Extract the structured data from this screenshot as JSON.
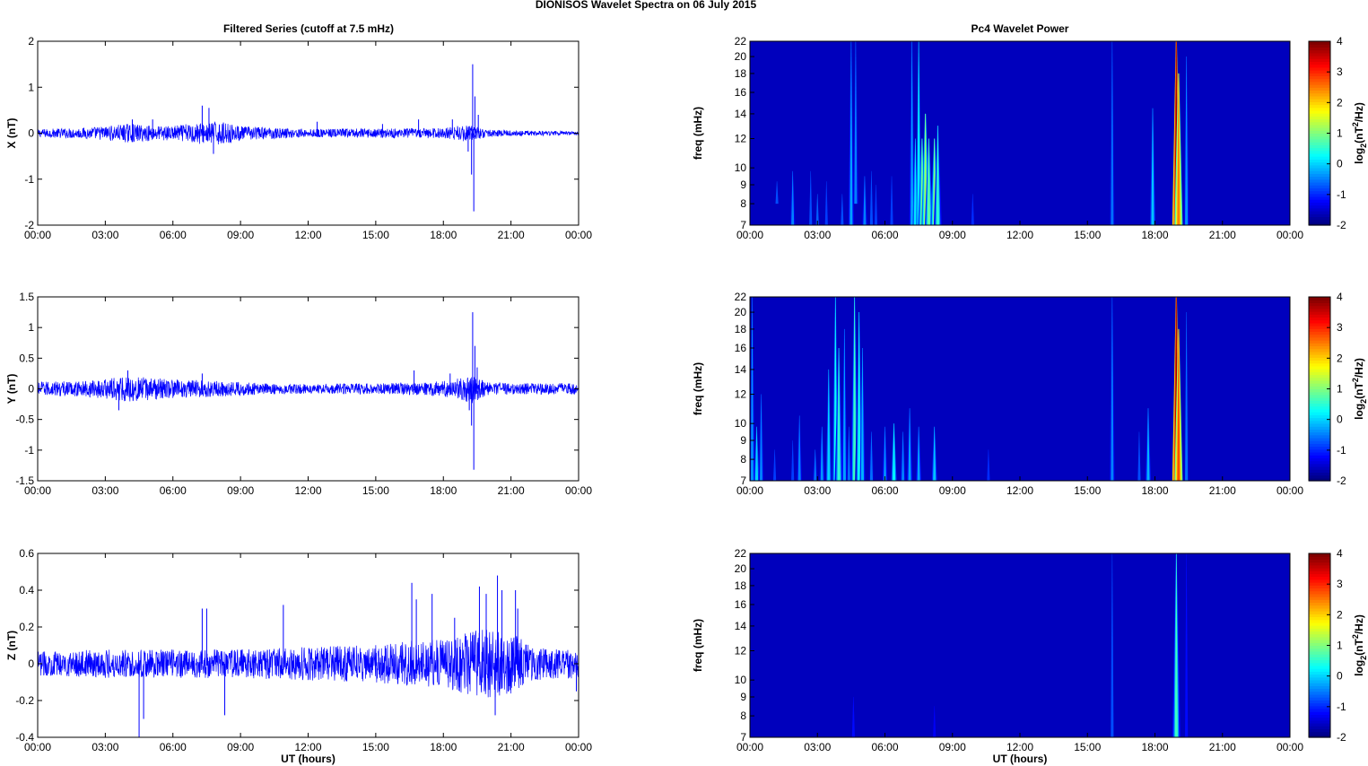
{
  "figure": {
    "title": "DIONISOS Wavelet Spectra on 06 July      2015",
    "left_title": "Filtered Series (cutoff at 7.5 mHz)",
    "right_title": "Pc4 Wavelet Power",
    "xlabel": "UT (hours)"
  },
  "chart_data": [
    {
      "type": "line",
      "component": "X",
      "ylabel": "X (nT)",
      "xlabel": "",
      "x_ticks": [
        "00:00",
        "03:00",
        "06:00",
        "09:00",
        "12:00",
        "15:00",
        "18:00",
        "21:00",
        "00:00"
      ],
      "ylim": [
        -2,
        2
      ],
      "y_ticks": [
        -2,
        -1,
        0,
        1,
        2
      ],
      "series": [
        {
          "color": "#0000ff",
          "noise_envelope": [
            [
              0,
              0.07
            ],
            [
              2,
              0.09
            ],
            [
              3,
              0.12
            ],
            [
              4,
              0.16
            ],
            [
              5,
              0.13
            ],
            [
              6,
              0.12
            ],
            [
              7,
              0.18
            ],
            [
              8,
              0.2
            ],
            [
              9,
              0.12
            ],
            [
              12,
              0.07
            ],
            [
              15,
              0.08
            ],
            [
              18,
              0.09
            ],
            [
              19,
              0.15
            ],
            [
              20,
              0.06
            ],
            [
              21,
              0.05
            ],
            [
              24,
              0.03
            ]
          ],
          "spikes": [
            [
              7.3,
              0.6
            ],
            [
              7.6,
              0.55
            ],
            [
              7.8,
              -0.45
            ],
            [
              4.2,
              0.3
            ],
            [
              5.1,
              0.3
            ],
            [
              12.4,
              0.25
            ],
            [
              15.3,
              0.2
            ],
            [
              16.9,
              0.3
            ],
            [
              18.4,
              0.3
            ],
            [
              19.3,
              1.5
            ],
            [
              19.35,
              -1.7
            ],
            [
              19.4,
              0.8
            ],
            [
              19.25,
              -0.9
            ],
            [
              19.1,
              -0.4
            ],
            [
              19.55,
              0.4
            ]
          ]
        }
      ]
    },
    {
      "type": "line",
      "component": "Y",
      "ylabel": "Y (nT)",
      "xlabel": "",
      "x_ticks": [
        "00:00",
        "03:00",
        "06:00",
        "09:00",
        "12:00",
        "15:00",
        "18:00",
        "21:00",
        "00:00"
      ],
      "ylim": [
        -1.5,
        1.5
      ],
      "y_ticks": [
        -1.5,
        -1,
        -0.5,
        0,
        0.5,
        1,
        1.5
      ],
      "series": [
        {
          "color": "#0000ff",
          "noise_envelope": [
            [
              0,
              0.09
            ],
            [
              2,
              0.1
            ],
            [
              3,
              0.13
            ],
            [
              4,
              0.16
            ],
            [
              5,
              0.14
            ],
            [
              6,
              0.12
            ],
            [
              8,
              0.1
            ],
            [
              10,
              0.07
            ],
            [
              12,
              0.06
            ],
            [
              15,
              0.07
            ],
            [
              17,
              0.08
            ],
            [
              18,
              0.1
            ],
            [
              19.3,
              0.18
            ],
            [
              20,
              0.08
            ],
            [
              21,
              0.07
            ],
            [
              24,
              0.07
            ]
          ],
          "spikes": [
            [
              3.6,
              -0.35
            ],
            [
              4.0,
              0.3
            ],
            [
              7.3,
              0.25
            ],
            [
              16.7,
              0.3
            ],
            [
              18.3,
              0.25
            ],
            [
              19.3,
              1.25
            ],
            [
              19.35,
              -1.32
            ],
            [
              19.4,
              0.7
            ],
            [
              19.25,
              -0.6
            ],
            [
              19.15,
              -0.35
            ],
            [
              19.5,
              0.35
            ]
          ]
        }
      ]
    },
    {
      "type": "line",
      "component": "Z",
      "ylabel": "Z (nT)",
      "xlabel": "UT (hours)",
      "x_ticks": [
        "00:00",
        "03:00",
        "06:00",
        "09:00",
        "12:00",
        "15:00",
        "18:00",
        "21:00",
        "00:00"
      ],
      "ylim": [
        -0.4,
        0.6
      ],
      "y_ticks": [
        -0.4,
        -0.2,
        0,
        0.2,
        0.4,
        0.6
      ],
      "series": [
        {
          "color": "#0000ff",
          "noise_envelope": [
            [
              0,
              0.05
            ],
            [
              3,
              0.06
            ],
            [
              6,
              0.06
            ],
            [
              9,
              0.06
            ],
            [
              12,
              0.07
            ],
            [
              15,
              0.08
            ],
            [
              16,
              0.09
            ],
            [
              17,
              0.1
            ],
            [
              18,
              0.1
            ],
            [
              19,
              0.13
            ],
            [
              20,
              0.15
            ],
            [
              21,
              0.13
            ],
            [
              22,
              0.07
            ],
            [
              24,
              0.06
            ]
          ],
          "spikes": [
            [
              4.5,
              -0.4
            ],
            [
              4.7,
              -0.3
            ],
            [
              7.3,
              0.3
            ],
            [
              7.5,
              0.3
            ],
            [
              8.3,
              -0.28
            ],
            [
              10.9,
              0.32
            ],
            [
              16.6,
              0.44
            ],
            [
              16.8,
              0.35
            ],
            [
              17.5,
              0.38
            ],
            [
              18.5,
              0.25
            ],
            [
              19.6,
              0.42
            ],
            [
              19.9,
              0.38
            ],
            [
              20.4,
              0.48
            ],
            [
              20.3,
              -0.28
            ],
            [
              20.6,
              0.4
            ],
            [
              21.2,
              0.4
            ],
            [
              21.3,
              0.3
            ],
            [
              23.9,
              -0.15
            ]
          ]
        }
      ]
    }
  ],
  "wavelet_panels": [
    {
      "type": "heatmap",
      "component": "X",
      "ylabel": "freq (mHz)",
      "xlabel": "",
      "colorbar_label": "log2(nT2/Hz)",
      "x_ticks": [
        "00:00",
        "03:00",
        "06:00",
        "09:00",
        "12:00",
        "15:00",
        "18:00",
        "21:00",
        "00:00"
      ],
      "ylim": [
        7,
        22
      ],
      "y_ticks": [
        7,
        8,
        9,
        10,
        12,
        14,
        16,
        18,
        20,
        22
      ],
      "clim": [
        -2,
        4
      ],
      "c_ticks": [
        -2,
        -1,
        0,
        1,
        2,
        3,
        4
      ],
      "events": [
        [
          1.2,
          8,
          9.2,
          -0.8
        ],
        [
          1.9,
          7,
          9.8,
          -0.5
        ],
        [
          2.7,
          7,
          9.8,
          -0.8
        ],
        [
          3.0,
          7,
          8.5,
          -0.7
        ],
        [
          3.4,
          7,
          9.2,
          -0.9
        ],
        [
          4.1,
          7,
          8.5,
          -0.8
        ],
        [
          4.5,
          7,
          22,
          -0.3
        ],
        [
          4.7,
          8,
          22,
          -0.5
        ],
        [
          5.1,
          7,
          9.5,
          -0.5
        ],
        [
          5.4,
          7,
          9.8,
          -0.8
        ],
        [
          5.6,
          7,
          9.0,
          -0.9
        ],
        [
          6.3,
          7,
          9.5,
          -0.9
        ],
        [
          7.2,
          7,
          22,
          -0.3
        ],
        [
          7.35,
          7,
          12,
          0.1
        ],
        [
          7.5,
          7,
          22,
          0.2
        ],
        [
          7.65,
          7,
          12,
          0.9
        ],
        [
          7.8,
          7,
          14,
          1.2
        ],
        [
          7.95,
          7,
          12,
          0.8
        ],
        [
          8.2,
          7,
          12,
          1.0
        ],
        [
          8.35,
          7,
          13,
          0.5
        ],
        [
          9.9,
          7,
          8.5,
          -1.0
        ],
        [
          16.1,
          7,
          22,
          -0.6
        ],
        [
          17.9,
          7,
          14.5,
          -0.1
        ],
        [
          18.95,
          7,
          22,
          3.8
        ],
        [
          19.05,
          7,
          18,
          2.5
        ],
        [
          19.4,
          7,
          20,
          -0.4
        ]
      ]
    },
    {
      "type": "heatmap",
      "component": "Y",
      "ylabel": "freq (mHz)",
      "xlabel": "",
      "colorbar_label": "log2(nT2/Hz)",
      "x_ticks": [
        "00:00",
        "03:00",
        "06:00",
        "09:00",
        "12:00",
        "15:00",
        "18:00",
        "21:00",
        "00:00"
      ],
      "ylim": [
        7,
        22
      ],
      "y_ticks": [
        7,
        8,
        9,
        10,
        12,
        14,
        16,
        18,
        20,
        22
      ],
      "clim": [
        -2,
        4
      ],
      "c_ticks": [
        -2,
        -1,
        0,
        1,
        2,
        3,
        4
      ],
      "events": [
        [
          0.1,
          7,
          22,
          -0.4
        ],
        [
          0.3,
          7,
          9.8,
          0.0
        ],
        [
          0.5,
          7,
          12,
          -0.5
        ],
        [
          1.1,
          7,
          8.5,
          -0.9
        ],
        [
          1.9,
          7,
          9.0,
          -0.9
        ],
        [
          2.2,
          7,
          10.5,
          -0.5
        ],
        [
          2.9,
          7,
          8.5,
          -0.6
        ],
        [
          3.2,
          7,
          9.8,
          -0.4
        ],
        [
          3.5,
          7,
          14,
          0.0
        ],
        [
          3.8,
          7,
          22,
          0.3
        ],
        [
          3.95,
          7,
          16,
          0.5
        ],
        [
          4.2,
          7,
          18,
          -0.3
        ],
        [
          4.4,
          7,
          9.8,
          -0.6
        ],
        [
          4.65,
          7,
          22,
          0.6
        ],
        [
          4.85,
          7,
          20,
          0.3
        ],
        [
          5.0,
          7,
          16,
          -0.2
        ],
        [
          5.4,
          7,
          9.5,
          -0.6
        ],
        [
          6.0,
          7,
          9.8,
          -0.4
        ],
        [
          6.4,
          7,
          10,
          0.2
        ],
        [
          6.8,
          7,
          9.5,
          -0.5
        ],
        [
          7.1,
          7,
          11,
          -0.3
        ],
        [
          7.5,
          7,
          9.8,
          -0.3
        ],
        [
          8.2,
          7,
          9.8,
          -0.1
        ],
        [
          10.6,
          7,
          8.5,
          -1.0
        ],
        [
          16.1,
          7,
          22,
          -0.5
        ],
        [
          17.3,
          7,
          9.5,
          -0.8
        ],
        [
          17.7,
          7,
          11,
          -0.2
        ],
        [
          18.95,
          7,
          22,
          3.8
        ],
        [
          19.05,
          7,
          18,
          2.8
        ],
        [
          19.4,
          7,
          20,
          -0.6
        ]
      ]
    },
    {
      "type": "heatmap",
      "component": "Z",
      "ylabel": "freq (mHz)",
      "xlabel": "UT (hours)",
      "colorbar_label": "log2(nT2/Hz)",
      "x_ticks": [
        "00:00",
        "03:00",
        "06:00",
        "09:00",
        "12:00",
        "15:00",
        "18:00",
        "21:00",
        "00:00"
      ],
      "ylim": [
        7,
        22
      ],
      "y_ticks": [
        7,
        8,
        9,
        10,
        12,
        14,
        16,
        18,
        20,
        22
      ],
      "clim": [
        -2,
        4
      ],
      "c_ticks": [
        -2,
        -1,
        0,
        1,
        2,
        3,
        4
      ],
      "events": [
        [
          4.6,
          7,
          9.0,
          -1.2
        ],
        [
          8.2,
          7,
          8.5,
          -1.3
        ],
        [
          16.1,
          7,
          22,
          -0.8
        ],
        [
          18.95,
          7,
          22,
          0.6
        ],
        [
          19.4,
          7,
          22,
          -1.2
        ]
      ]
    }
  ]
}
